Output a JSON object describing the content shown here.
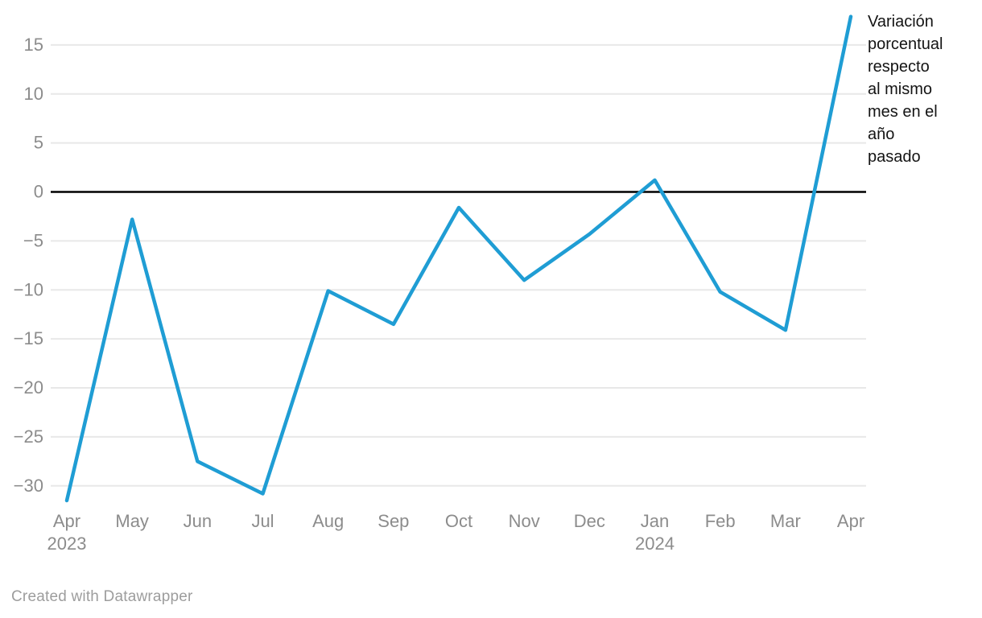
{
  "chart_data": {
    "type": "line",
    "title": "",
    "xlabel": "",
    "ylabel": "",
    "categories": [
      "Apr",
      "May",
      "Jun",
      "Jul",
      "Aug",
      "Sep",
      "Oct",
      "Nov",
      "Dec",
      "Jan",
      "Feb",
      "Mar",
      "Apr"
    ],
    "category_sublabels": [
      "2023",
      "",
      "",
      "",
      "",
      "",
      "",
      "",
      "",
      "2024",
      "",
      "",
      ""
    ],
    "values": [
      -31.5,
      -2.8,
      -27.5,
      -30.8,
      -10.1,
      -13.5,
      -1.6,
      -9.0,
      -4.3,
      1.2,
      -10.2,
      -14.1,
      17.9
    ],
    "y_ticks": [
      15,
      10,
      5,
      0,
      -5,
      -10,
      -15,
      -20,
      -25,
      -30
    ],
    "ylim": [
      -33,
      18.5
    ],
    "grid": "horizontal",
    "zero_line": true,
    "legend_position": "none",
    "annotation": "Variación porcentual respecto al mismo mes en el año pasado",
    "line_color": "#1F9DD4",
    "grid_color": "#e8e8e8",
    "zero_line_color": "#000000",
    "axis_label_color": "#8c8c8c"
  },
  "footer": {
    "credit": "Created with Datawrapper"
  }
}
